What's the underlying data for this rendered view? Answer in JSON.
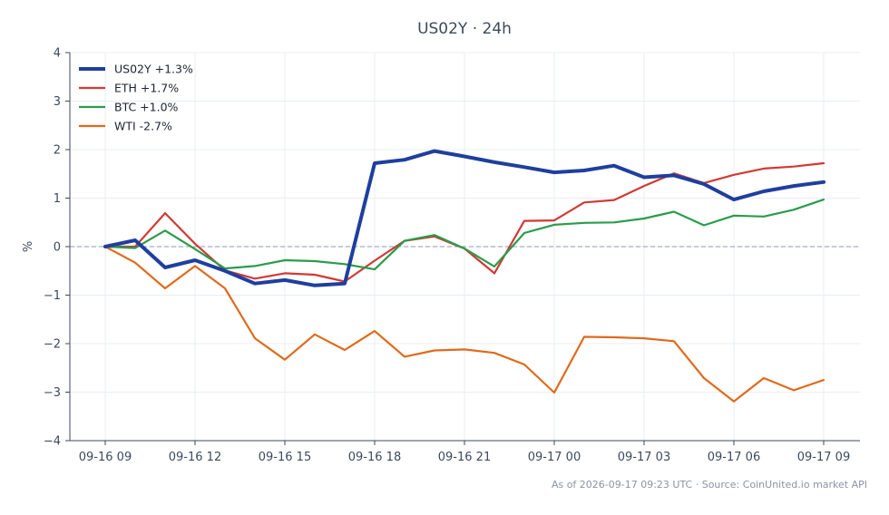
{
  "chart_data": {
    "type": "line",
    "title": "US02Y · 24h",
    "xlabel": "",
    "ylabel": "%",
    "ylim": [
      -4,
      4
    ],
    "yticks": [
      -4,
      -3,
      -2,
      -1,
      0,
      1,
      2,
      3,
      4
    ],
    "ytick_labels": [
      "−4",
      "−3",
      "−2",
      "−1",
      "0",
      "1",
      "2",
      "3",
      "4"
    ],
    "x": [
      "09-16 09",
      "09-16 10",
      "09-16 11",
      "09-16 12",
      "09-16 13",
      "09-16 14",
      "09-16 15",
      "09-16 16",
      "09-16 17",
      "09-16 18",
      "09-16 19",
      "09-16 20",
      "09-16 21",
      "09-16 22",
      "09-16 23",
      "09-17 00",
      "09-17 01",
      "09-17 02",
      "09-17 03",
      "09-17 04",
      "09-17 05",
      "09-17 06",
      "09-17 07",
      "09-17 08",
      "09-17 09"
    ],
    "xtick_labels": [
      "09-16 09",
      "09-16 12",
      "09-16 15",
      "09-16 18",
      "09-16 21",
      "09-17 00",
      "09-17 03",
      "09-17 06",
      "09-17 09"
    ],
    "grid": true,
    "baseline": 0,
    "legend_position": "top-left",
    "series": [
      {
        "name": "US02Y +1.3%",
        "color": "#1f3f9e",
        "width": 4,
        "values": [
          0.0,
          0.13,
          -0.43,
          -0.28,
          -0.5,
          -0.76,
          -0.69,
          -0.8,
          -0.76,
          1.72,
          1.79,
          1.97,
          1.86,
          1.74,
          1.64,
          1.53,
          1.57,
          1.67,
          1.43,
          1.47,
          1.29,
          0.97,
          1.14,
          1.25,
          1.33
        ]
      },
      {
        "name": "ETH +1.7%",
        "color": "#d03a35",
        "width": 2.2,
        "values": [
          0.0,
          0.0,
          0.69,
          0.06,
          -0.49,
          -0.66,
          -0.55,
          -0.58,
          -0.72,
          -0.29,
          0.12,
          0.21,
          -0.04,
          -0.55,
          0.53,
          0.54,
          0.91,
          0.96,
          1.25,
          1.51,
          1.31,
          1.48,
          1.61,
          1.65,
          1.72
        ]
      },
      {
        "name": "BTC +1.0%",
        "color": "#2a9c4b",
        "width": 2.2,
        "values": [
          0.0,
          -0.03,
          0.33,
          -0.05,
          -0.45,
          -0.4,
          -0.28,
          -0.3,
          -0.36,
          -0.47,
          0.12,
          0.24,
          -0.04,
          -0.41,
          0.28,
          0.45,
          0.49,
          0.5,
          0.58,
          0.72,
          0.44,
          0.64,
          0.62,
          0.76,
          0.97
        ]
      },
      {
        "name": "WTI -2.7%",
        "color": "#e06a1c",
        "width": 2.2,
        "values": [
          0.0,
          -0.33,
          -0.86,
          -0.4,
          -0.86,
          -1.89,
          -2.33,
          -1.81,
          -2.13,
          -1.74,
          -2.27,
          -2.14,
          -2.12,
          -2.19,
          -2.43,
          -3.01,
          -1.86,
          -1.87,
          -1.89,
          -1.95,
          -2.71,
          -3.19,
          -2.71,
          -2.96,
          -2.75
        ]
      }
    ]
  },
  "footer": {
    "source_note": "As of 2026-09-17 09:23 UTC · Source: CoinUnited.io market API"
  }
}
